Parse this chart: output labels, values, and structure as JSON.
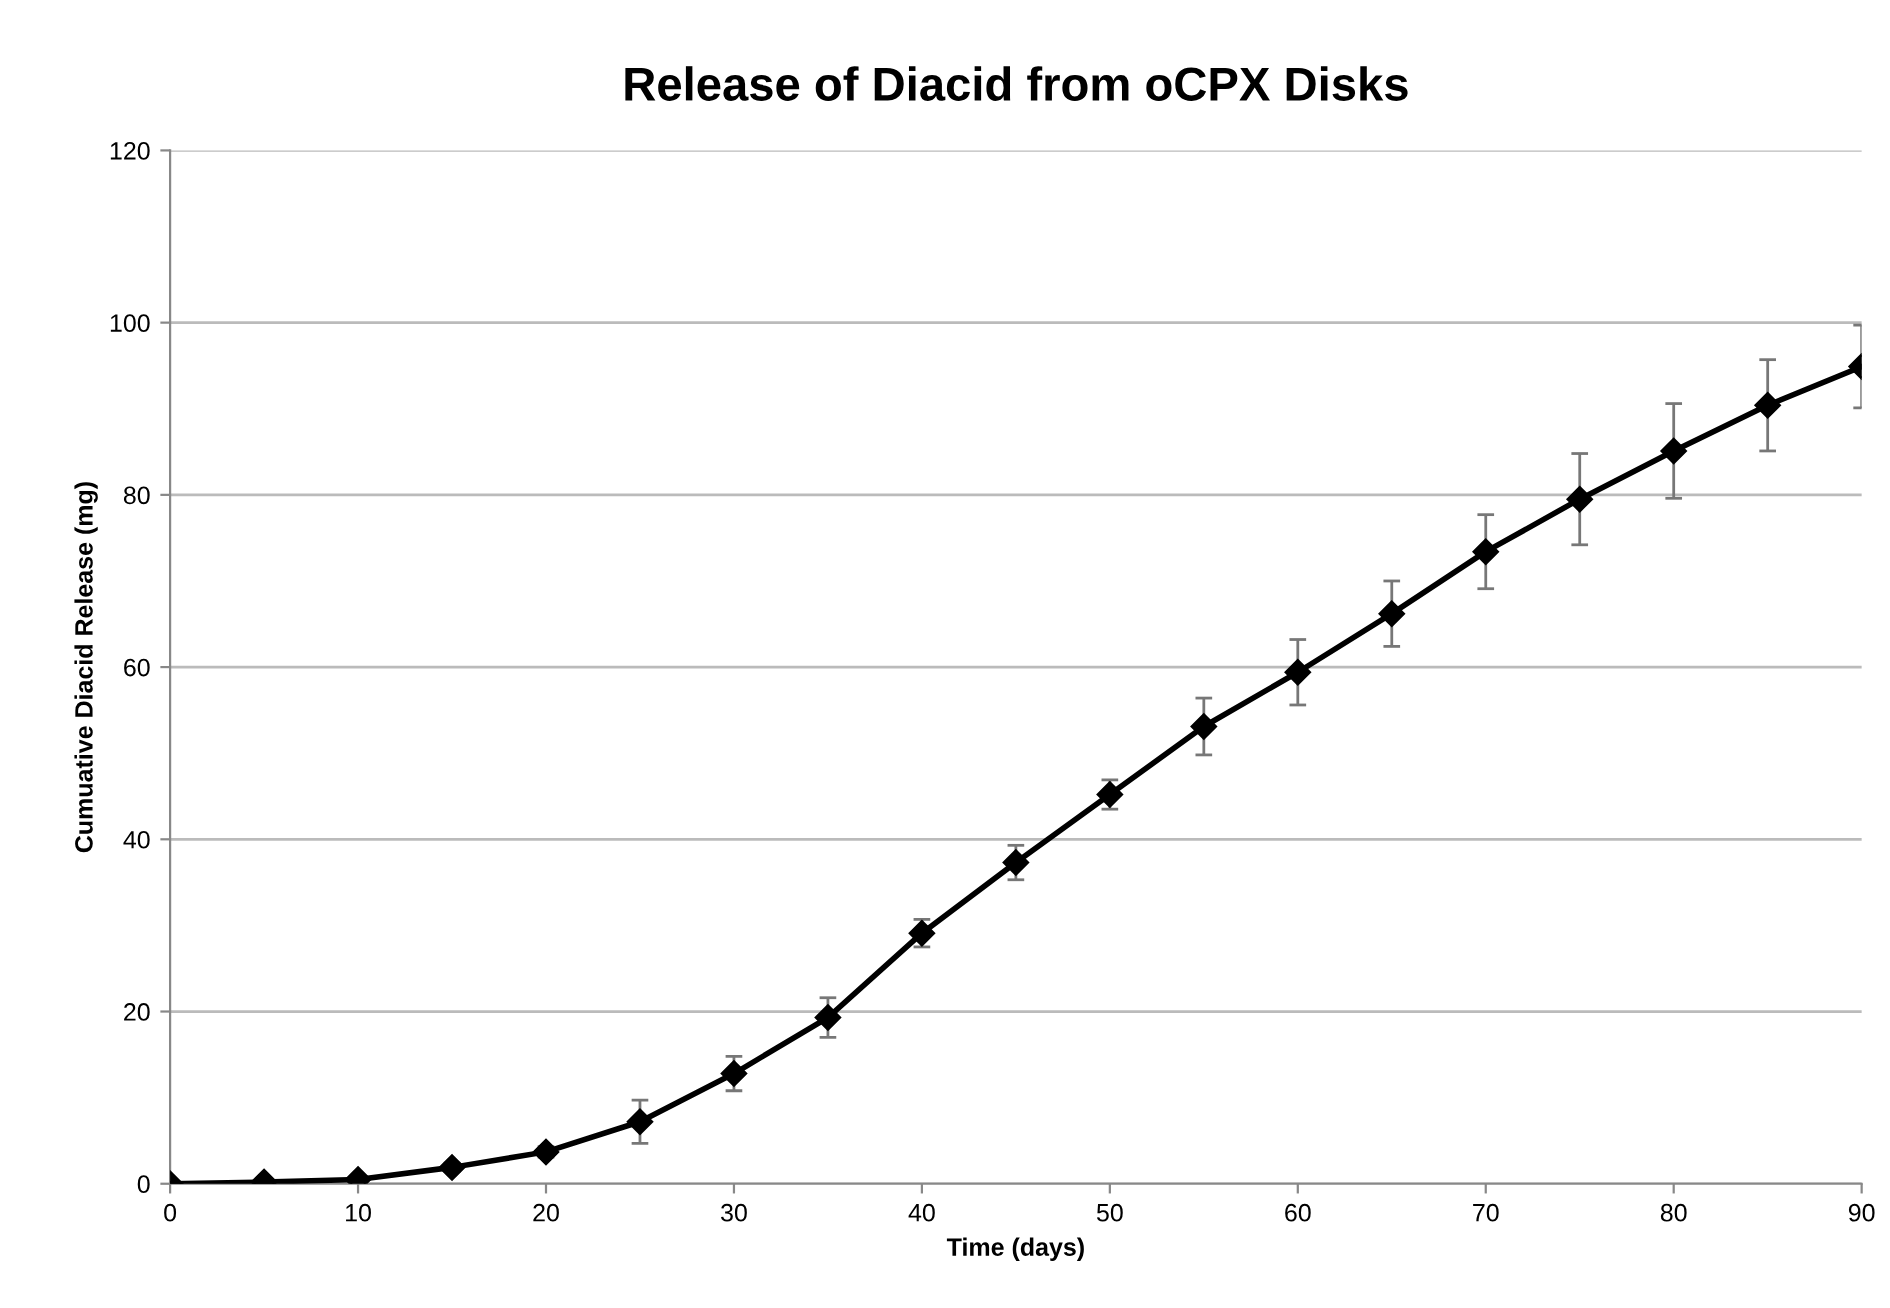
{
  "chart_data": {
    "type": "line",
    "title": "Release of Diacid from oCPX Disks",
    "xlabel": "Time (days)",
    "ylabel": "Cumuative Diacid Release (mg)",
    "x": [
      0,
      5,
      10,
      15,
      20,
      25,
      30,
      35,
      40,
      45,
      50,
      55,
      60,
      65,
      70,
      75,
      80,
      85,
      90
    ],
    "series": [
      {
        "color": "#000000",
        "values": [
          0,
          0.2,
          0.5,
          1.9,
          3.7,
          7.2,
          12.8,
          19.3,
          29.1,
          37.3,
          45.2,
          53.1,
          59.4,
          66.2,
          73.4,
          79.5,
          85.1,
          90.4,
          94.9
        ],
        "errors": [
          null,
          null,
          0.3,
          0.5,
          0.6,
          2.5,
          2,
          2.3,
          1.6,
          2,
          1.7,
          3.3,
          3.8,
          3.8,
          4.3,
          5.3,
          5.5,
          5.3,
          4.8
        ]
      }
    ],
    "xlim": [
      0,
      90
    ],
    "xticks": [
      0,
      10,
      20,
      30,
      40,
      50,
      60,
      70,
      80,
      90
    ],
    "ylim": [
      0,
      120
    ],
    "yticks": [
      0,
      20,
      40,
      60,
      80,
      100,
      120
    ],
    "grid": "y",
    "marker": "diamond",
    "line_style": "solid",
    "legend": false
  }
}
